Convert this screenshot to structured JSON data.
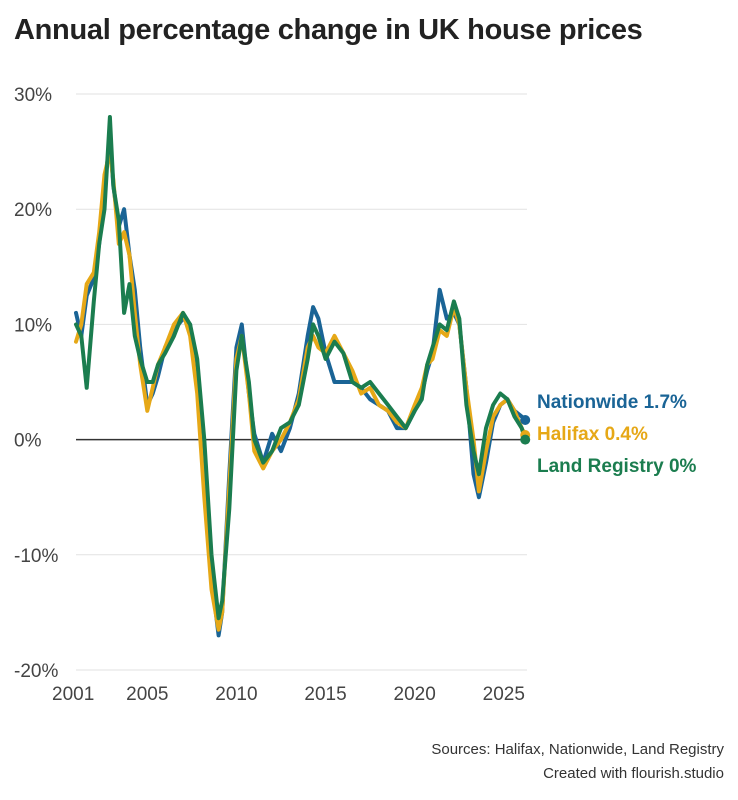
{
  "title": "Annual percentage change in UK house prices",
  "sources_text": "Sources: Halifax, Nationwide, Land Registry",
  "credit_text": "Created with flourish.studio",
  "chart_data": {
    "type": "line",
    "title": "Annual percentage change in UK house prices",
    "xlabel": "",
    "ylabel": "",
    "xlim": [
      2001,
      2026.3
    ],
    "ylim": [
      -20,
      30
    ],
    "x_ticks": [
      2001,
      2005,
      2010,
      2015,
      2020,
      2025
    ],
    "x_tick_labels": [
      "2001",
      "2005",
      "2010",
      "2015",
      "2020",
      "2025"
    ],
    "y_ticks": [
      30,
      20,
      10,
      0,
      -10,
      -20
    ],
    "y_tick_labels": [
      "30%",
      "20%",
      "10%",
      "0%",
      "-10%",
      "-20%"
    ],
    "grid": "horizontal",
    "zero_line": true,
    "legend": "end-of-line labels",
    "series": [
      {
        "name": "Nationwide",
        "end_label": "Nationwide 1.7%",
        "color": "#1a6496",
        "x": [
          2001.0,
          2001.3,
          2001.6,
          2002.0,
          2002.3,
          2002.6,
          2002.9,
          2003.1,
          2003.4,
          2003.7,
          2004.0,
          2004.3,
          2004.6,
          2005.0,
          2005.3,
          2005.6,
          2006.0,
          2006.5,
          2007.0,
          2007.4,
          2007.8,
          2008.2,
          2008.6,
          2009.0,
          2009.2,
          2009.6,
          2010.0,
          2010.3,
          2010.7,
          2011.0,
          2011.5,
          2012.0,
          2012.5,
          2013.0,
          2013.5,
          2014.0,
          2014.3,
          2014.6,
          2015.0,
          2015.5,
          2016.0,
          2016.5,
          2017.0,
          2017.5,
          2018.0,
          2018.5,
          2019.0,
          2019.5,
          2020.0,
          2020.4,
          2020.7,
          2021.0,
          2021.4,
          2021.8,
          2022.2,
          2022.5,
          2022.9,
          2023.3,
          2023.6,
          2024.0,
          2024.4,
          2024.8,
          2025.2,
          2025.6,
          2026.0,
          2026.2
        ],
        "values": [
          11.0,
          9.0,
          12.5,
          14.0,
          17.0,
          22.0,
          26.0,
          22.0,
          18.5,
          20.0,
          16.0,
          13.0,
          8.0,
          3.0,
          4.0,
          5.5,
          8.0,
          9.5,
          10.5,
          10.0,
          5.0,
          -3.0,
          -12.0,
          -17.0,
          -15.0,
          -3.0,
          8.0,
          10.0,
          4.0,
          0.5,
          -2.0,
          0.5,
          -1.0,
          1.0,
          4.0,
          9.0,
          11.5,
          10.5,
          7.5,
          5.0,
          5.0,
          5.0,
          4.5,
          3.5,
          3.0,
          2.5,
          1.0,
          1.0,
          2.5,
          4.0,
          6.0,
          7.5,
          13.0,
          10.5,
          11.0,
          10.0,
          4.5,
          -3.0,
          -5.0,
          -2.0,
          1.5,
          3.0,
          3.5,
          2.5,
          2.0,
          1.7
        ]
      },
      {
        "name": "Halifax",
        "end_label": "Halifax 0.4%",
        "color": "#e6a817",
        "x": [
          2001.0,
          2001.3,
          2001.6,
          2002.0,
          2002.3,
          2002.6,
          2002.9,
          2003.1,
          2003.4,
          2003.7,
          2004.0,
          2004.3,
          2004.6,
          2005.0,
          2005.3,
          2005.6,
          2006.0,
          2006.5,
          2007.0,
          2007.4,
          2007.8,
          2008.2,
          2008.6,
          2009.0,
          2009.2,
          2009.6,
          2010.0,
          2010.3,
          2010.7,
          2011.0,
          2011.5,
          2012.0,
          2012.5,
          2013.0,
          2013.5,
          2014.0,
          2014.3,
          2014.6,
          2015.0,
          2015.5,
          2016.0,
          2016.5,
          2017.0,
          2017.5,
          2018.0,
          2018.5,
          2019.0,
          2019.5,
          2020.0,
          2020.4,
          2020.7,
          2021.0,
          2021.4,
          2021.8,
          2022.2,
          2022.5,
          2022.9,
          2023.3,
          2023.6,
          2024.0,
          2024.4,
          2024.8,
          2025.2,
          2025.6,
          2026.0,
          2026.2
        ],
        "values": [
          8.5,
          10.0,
          13.5,
          14.5,
          18.0,
          23.0,
          25.0,
          22.5,
          17.0,
          18.0,
          16.0,
          11.0,
          6.5,
          2.5,
          4.5,
          6.5,
          8.0,
          10.0,
          11.0,
          9.0,
          4.0,
          -5.0,
          -13.0,
          -16.5,
          -15.0,
          -4.0,
          7.0,
          9.0,
          4.0,
          -1.0,
          -2.5,
          -1.0,
          0.0,
          1.5,
          3.5,
          8.0,
          9.0,
          8.0,
          7.5,
          9.0,
          7.5,
          6.0,
          4.0,
          4.5,
          3.0,
          2.5,
          1.5,
          1.0,
          3.0,
          4.5,
          6.5,
          7.0,
          9.5,
          9.0,
          11.5,
          10.0,
          4.5,
          0.0,
          -4.5,
          -1.0,
          2.0,
          3.0,
          3.5,
          2.5,
          1.0,
          0.4
        ]
      },
      {
        "name": "Land Registry",
        "end_label": "Land Registry 0%",
        "color": "#1b7d4f",
        "x": [
          2001.0,
          2001.3,
          2001.6,
          2002.0,
          2002.3,
          2002.6,
          2002.9,
          2003.1,
          2003.4,
          2003.7,
          2004.0,
          2004.3,
          2004.6,
          2005.0,
          2005.3,
          2005.6,
          2006.0,
          2006.5,
          2007.0,
          2007.4,
          2007.8,
          2008.2,
          2008.6,
          2009.0,
          2009.2,
          2009.6,
          2010.0,
          2010.3,
          2010.7,
          2011.0,
          2011.5,
          2012.0,
          2012.5,
          2013.0,
          2013.5,
          2014.0,
          2014.3,
          2014.6,
          2015.0,
          2015.5,
          2016.0,
          2016.5,
          2017.0,
          2017.5,
          2018.0,
          2018.5,
          2019.0,
          2019.5,
          2020.0,
          2020.4,
          2020.7,
          2021.0,
          2021.4,
          2021.8,
          2022.2,
          2022.5,
          2022.9,
          2023.3,
          2023.6,
          2024.0,
          2024.4,
          2024.8,
          2025.2,
          2025.6,
          2026.0,
          2026.2
        ],
        "values": [
          10.0,
          9.0,
          4.5,
          12.0,
          17.0,
          20.0,
          28.0,
          22.0,
          19.0,
          11.0,
          13.5,
          9.0,
          7.0,
          5.0,
          5.0,
          6.5,
          7.5,
          9.0,
          11.0,
          10.0,
          7.0,
          0.0,
          -10.0,
          -15.5,
          -14.0,
          -6.0,
          6.0,
          9.0,
          5.0,
          0.0,
          -2.0,
          -1.0,
          1.0,
          1.5,
          3.0,
          7.0,
          10.0,
          9.0,
          7.0,
          8.5,
          7.5,
          5.0,
          4.5,
          5.0,
          4.0,
          3.0,
          2.0,
          1.0,
          2.5,
          3.5,
          6.5,
          8.0,
          10.0,
          9.5,
          12.0,
          10.5,
          3.0,
          -1.0,
          -3.0,
          1.0,
          3.0,
          4.0,
          3.5,
          2.0,
          1.0,
          0.0
        ]
      }
    ]
  }
}
